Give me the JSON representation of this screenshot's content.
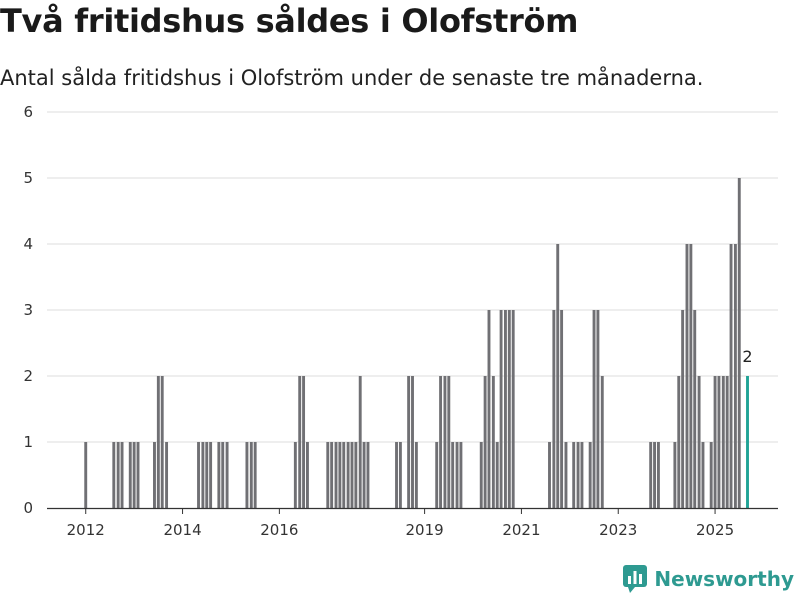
{
  "title": "Två fritidshus såldes i Olofström",
  "subtitle": "Antal sålda fritidshus i Olofström under de senaste tre månaderna.",
  "brand": {
    "name": "Newsworthy",
    "color": "#2e9a91"
  },
  "colors": {
    "bar": "#707074",
    "highlight": "#1fa396",
    "grid": "#dddddd",
    "axis": "#333333"
  },
  "chart_data": {
    "type": "bar",
    "ylim": [
      0,
      6
    ],
    "yticks": [
      0,
      1,
      2,
      3,
      4,
      5,
      6
    ],
    "xlim": [
      2011.2,
      2026.3
    ],
    "xticks": [
      2012,
      2014,
      2016,
      2019,
      2021,
      2023,
      2025
    ],
    "grid": true,
    "highlight": {
      "x": 2025.67,
      "value": 2,
      "label": "2"
    },
    "points": [
      {
        "x": 2012.0,
        "v": 1
      },
      {
        "x": 2012.58,
        "v": 1
      },
      {
        "x": 2012.67,
        "v": 1
      },
      {
        "x": 2012.75,
        "v": 1
      },
      {
        "x": 2012.92,
        "v": 1
      },
      {
        "x": 2013.0,
        "v": 1
      },
      {
        "x": 2013.08,
        "v": 1
      },
      {
        "x": 2013.42,
        "v": 1
      },
      {
        "x": 2013.5,
        "v": 2
      },
      {
        "x": 2013.58,
        "v": 2
      },
      {
        "x": 2013.67,
        "v": 1
      },
      {
        "x": 2014.33,
        "v": 1
      },
      {
        "x": 2014.42,
        "v": 1
      },
      {
        "x": 2014.5,
        "v": 1
      },
      {
        "x": 2014.58,
        "v": 1
      },
      {
        "x": 2014.75,
        "v": 1
      },
      {
        "x": 2014.83,
        "v": 1
      },
      {
        "x": 2014.92,
        "v": 1
      },
      {
        "x": 2015.33,
        "v": 1
      },
      {
        "x": 2015.42,
        "v": 1
      },
      {
        "x": 2015.5,
        "v": 1
      },
      {
        "x": 2016.33,
        "v": 1
      },
      {
        "x": 2016.42,
        "v": 2
      },
      {
        "x": 2016.5,
        "v": 2
      },
      {
        "x": 2016.58,
        "v": 1
      },
      {
        "x": 2017.0,
        "v": 1
      },
      {
        "x": 2017.08,
        "v": 1
      },
      {
        "x": 2017.17,
        "v": 1
      },
      {
        "x": 2017.25,
        "v": 1
      },
      {
        "x": 2017.33,
        "v": 1
      },
      {
        "x": 2017.42,
        "v": 1
      },
      {
        "x": 2017.5,
        "v": 1
      },
      {
        "x": 2017.58,
        "v": 1
      },
      {
        "x": 2017.67,
        "v": 2
      },
      {
        "x": 2017.75,
        "v": 1
      },
      {
        "x": 2017.83,
        "v": 1
      },
      {
        "x": 2018.42,
        "v": 1
      },
      {
        "x": 2018.5,
        "v": 1
      },
      {
        "x": 2018.67,
        "v": 2
      },
      {
        "x": 2018.75,
        "v": 2
      },
      {
        "x": 2018.83,
        "v": 1
      },
      {
        "x": 2019.25,
        "v": 1
      },
      {
        "x": 2019.33,
        "v": 2
      },
      {
        "x": 2019.42,
        "v": 2
      },
      {
        "x": 2019.5,
        "v": 2
      },
      {
        "x": 2019.58,
        "v": 1
      },
      {
        "x": 2019.67,
        "v": 1
      },
      {
        "x": 2019.75,
        "v": 1
      },
      {
        "x": 2020.17,
        "v": 1
      },
      {
        "x": 2020.25,
        "v": 2
      },
      {
        "x": 2020.33,
        "v": 3
      },
      {
        "x": 2020.42,
        "v": 2
      },
      {
        "x": 2020.5,
        "v": 1
      },
      {
        "x": 2020.58,
        "v": 3
      },
      {
        "x": 2020.67,
        "v": 3
      },
      {
        "x": 2020.75,
        "v": 3
      },
      {
        "x": 2020.83,
        "v": 3
      },
      {
        "x": 2021.58,
        "v": 1
      },
      {
        "x": 2021.67,
        "v": 3
      },
      {
        "x": 2021.75,
        "v": 4
      },
      {
        "x": 2021.83,
        "v": 3
      },
      {
        "x": 2021.92,
        "v": 1
      },
      {
        "x": 2022.08,
        "v": 1
      },
      {
        "x": 2022.17,
        "v": 1
      },
      {
        "x": 2022.25,
        "v": 1
      },
      {
        "x": 2022.42,
        "v": 1
      },
      {
        "x": 2022.5,
        "v": 3
      },
      {
        "x": 2022.58,
        "v": 3
      },
      {
        "x": 2022.67,
        "v": 2
      },
      {
        "x": 2023.67,
        "v": 1
      },
      {
        "x": 2023.75,
        "v": 1
      },
      {
        "x": 2023.83,
        "v": 1
      },
      {
        "x": 2024.17,
        "v": 1
      },
      {
        "x": 2024.25,
        "v": 2
      },
      {
        "x": 2024.33,
        "v": 3
      },
      {
        "x": 2024.42,
        "v": 4
      },
      {
        "x": 2024.5,
        "v": 4
      },
      {
        "x": 2024.58,
        "v": 3
      },
      {
        "x": 2024.67,
        "v": 2
      },
      {
        "x": 2024.75,
        "v": 1
      },
      {
        "x": 2024.92,
        "v": 1
      },
      {
        "x": 2025.0,
        "v": 2
      },
      {
        "x": 2025.08,
        "v": 2
      },
      {
        "x": 2025.17,
        "v": 2
      },
      {
        "x": 2025.25,
        "v": 2
      },
      {
        "x": 2025.33,
        "v": 4
      },
      {
        "x": 2025.42,
        "v": 4
      },
      {
        "x": 2025.5,
        "v": 5
      },
      {
        "x": 2025.67,
        "v": 2
      }
    ]
  }
}
